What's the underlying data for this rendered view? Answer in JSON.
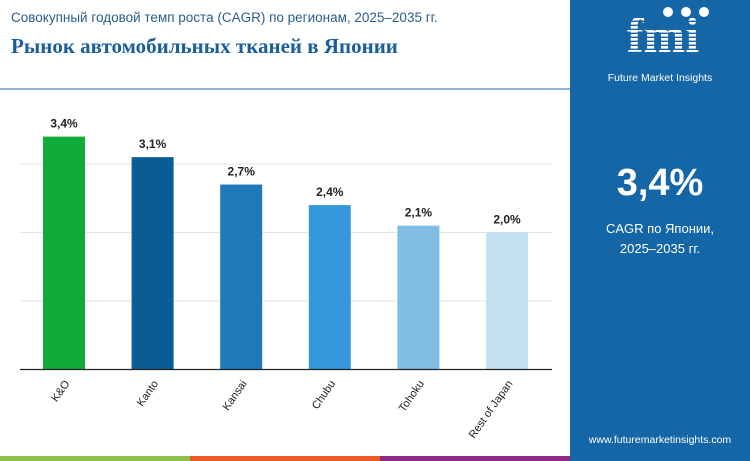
{
  "header": {
    "subtitle": "Совокупный годовой темп роста (CAGR) по регионам, 2025–2035 гг.",
    "title": "Рынок автомобильных тканей в Японии"
  },
  "sidebar": {
    "logo_text": "fmi",
    "logo_caption": "Future Market Insights",
    "highlight_value": "3,4%",
    "highlight_caption": "CAGR по Японии, 2025–2035 гг.",
    "url": "www.futuremarketinsights.com"
  },
  "colors": {
    "panel": "#1566a6",
    "stripes": [
      "#8cc04a",
      "#e95a25",
      "#8e2a86"
    ]
  },
  "chart_data": {
    "type": "bar",
    "title": "Рынок автомобильных тканей в Японии",
    "categories": [
      "K&O",
      "Kanto",
      "Kansai",
      "Chubu",
      "Tohoku",
      "Rest of Japan"
    ],
    "values": [
      3.4,
      3.1,
      2.7,
      2.4,
      2.1,
      2.0
    ],
    "labels": [
      "3,4%",
      "3,1%",
      "2,7%",
      "2,4%",
      "2,1%",
      "2,0%"
    ],
    "colors": [
      "#0fad38",
      "#0b5b94",
      "#1f78b8",
      "#3498da",
      "#7fbde4",
      "#c4e1f3"
    ],
    "ylim": [
      0,
      4
    ],
    "grid": true,
    "xlabel": "",
    "ylabel": ""
  }
}
